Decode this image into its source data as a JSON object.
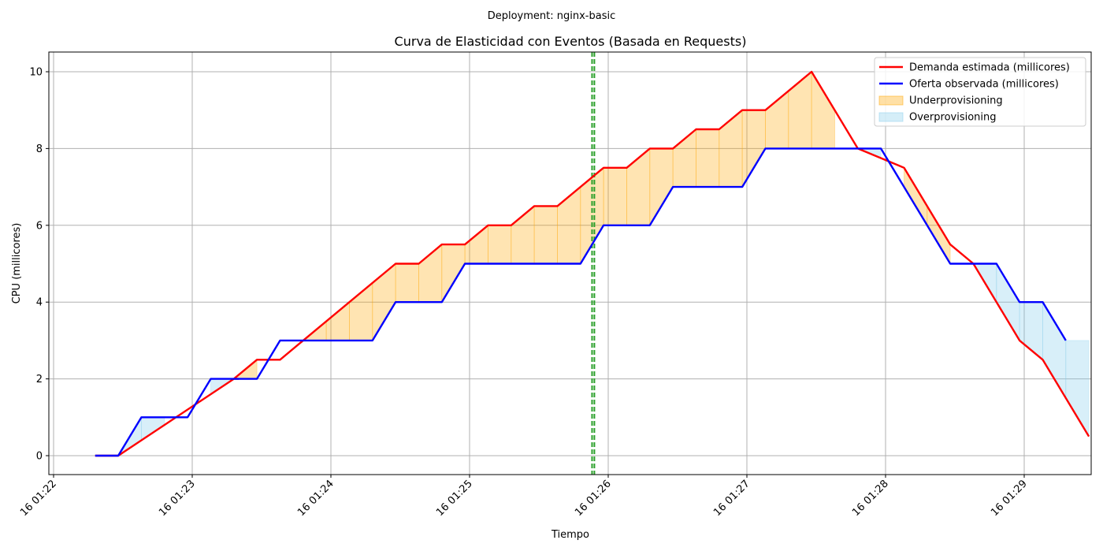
{
  "suptitle": "Deployment: nginx-basic",
  "chart_data": {
    "type": "line",
    "title": "Curva de Elasticidad con Eventos (Basada en Requests)",
    "xlabel": "Tiempo",
    "ylabel": "CPU (millicores)",
    "x_unit": "minutes",
    "x_ticks": [
      {
        "value": 82,
        "label": "16 01:22"
      },
      {
        "value": 83,
        "label": "16 01:23"
      },
      {
        "value": 84,
        "label": "16 01:24"
      },
      {
        "value": 85,
        "label": "16 01:25"
      },
      {
        "value": 86,
        "label": "16 01:26"
      },
      {
        "value": 87,
        "label": "16 01:27"
      },
      {
        "value": 88,
        "label": "16 01:28"
      },
      {
        "value": 89,
        "label": "16 01:29"
      }
    ],
    "y_ticks": [
      0,
      2,
      4,
      6,
      8,
      10
    ],
    "xlim": [
      "16 01:21:58",
      "16 01:29:30"
    ],
    "ylim": [
      -0.5,
      10.5
    ],
    "grid": true,
    "legend_position": "top-right",
    "series": [
      {
        "name": "Demanda estimada (millicores)",
        "color": "#ff0000",
        "points": [
          [
            "01:22:18",
            0
          ],
          [
            "01:22:28",
            0
          ],
          [
            "01:23:18",
            2
          ],
          [
            "01:23:18",
            2
          ],
          [
            "01:23:18",
            2
          ],
          [
            "01:23:18",
            2
          ],
          [
            "01:23:18",
            2
          ],
          [
            "01:23:19",
            2
          ],
          [
            "01:23:19",
            2
          ],
          [
            "01:23:19",
            2
          ],
          [
            "01:23:19",
            2
          ],
          [
            "01:23:20",
            2
          ],
          [
            "01:23:20",
            2
          ],
          [
            "01:23:20",
            2
          ],
          [
            "01:23:20",
            2
          ],
          [
            "01:23:20",
            2
          ],
          [
            "01:23:18",
            2
          ],
          [
            "01:23:18",
            2
          ],
          [
            "01:23:18",
            2
          ],
          [
            "01:23:18",
            2
          ],
          [
            "01:23:18",
            2
          ],
          [
            "01:23:18",
            2
          ],
          [
            "01:23:18",
            2
          ],
          [
            "01:23:18",
            2
          ],
          [
            "01:23:18",
            2
          ],
          [
            "01:23:18",
            2
          ],
          [
            "01:23:18",
            2
          ],
          [
            "01:23:18",
            2
          ],
          [
            "01:23:18",
            2
          ],
          [
            "01:23:18",
            2
          ],
          [
            "01:23:18",
            2
          ],
          [
            "01:23:18",
            2
          ],
          [
            "01:23:18",
            2
          ],
          [
            "01:23:18",
            2
          ],
          [
            "01:23:18",
            2
          ],
          [
            "01:23:18",
            2
          ],
          [
            "01:23:18",
            2
          ],
          [
            "01:23:18",
            2
          ],
          [
            "01:23:18",
            2
          ],
          [
            "01:23:18",
            2
          ],
          [
            "01:23:18",
            2
          ],
          [
            "01:23:18",
            2
          ],
          [
            "01:23:18",
            2
          ],
          [
            "01:23:18",
            2
          ],
          [
            "01:23:18",
            2
          ],
          [
            "01:23:18",
            2
          ],
          [
            "01:23:18",
            2
          ],
          [
            "01:23:18",
            2
          ],
          [
            "01:23:18",
            2
          ],
          [
            "01:23:18",
            2
          ],
          [
            "01:23:18",
            2
          ],
          [
            "01:23:18",
            2
          ],
          [
            "01:23:18",
            2
          ],
          [
            "01:23:18",
            2
          ],
          [
            "01:23:18",
            2
          ],
          [
            "01:23:18",
            2
          ],
          [
            "01:23:18",
            2
          ],
          [
            "01:23:18",
            2
          ],
          [
            "01:23:18",
            2
          ],
          [
            "01:23:18",
            2
          ],
          [
            "01:23:18",
            2
          ],
          [
            "01:23:18",
            2
          ],
          [
            "01:23:18",
            2
          ],
          [
            "01:23:18",
            2
          ],
          [
            "01:23:18",
            2
          ],
          [
            "01:23:18",
            2
          ],
          [
            "01:23:18",
            2
          ],
          [
            "01:23:18",
            2
          ],
          [
            "01:23:18",
            2
          ],
          [
            "01:23:18",
            2
          ],
          [
            "01:23:18",
            2
          ],
          [
            "01:23:18",
            2
          ],
          [
            "01:23:18",
            2
          ],
          [
            "01:23:18",
            2
          ],
          [
            "01:23:18",
            2
          ],
          [
            "01:23:18",
            2
          ],
          [
            "01:23:18",
            2
          ],
          [
            "01:23:18",
            2
          ],
          [
            "01:23:18",
            2
          ],
          [
            "01:23:18",
            2
          ],
          [
            "01:23:18",
            2
          ],
          [
            "01:23:18",
            2
          ],
          [
            "01:23:18",
            2
          ],
          [
            "01:23:18",
            2
          ],
          [
            "01:23:18",
            2
          ],
          [
            "01:23:18",
            2
          ],
          [
            "01:23:18",
            2
          ],
          [
            "01:23:18",
            2
          ],
          [
            "01:23:18",
            2
          ],
          [
            "01:23:18",
            2
          ],
          [
            "01:23:18",
            2
          ],
          [
            "01:23:18",
            2
          ],
          [
            "01:23:18",
            2
          ],
          [
            "01:23:18",
            2
          ],
          [
            "01:23:18",
            2
          ],
          [
            "01:23:18",
            2
          ],
          [
            "01:23:18",
            2
          ],
          [
            "01:23:18",
            2
          ],
          [
            "01:23:18",
            2
          ],
          [
            "01:23:18",
            2
          ],
          [
            "01:23:28",
            2.5
          ],
          [
            "01:23:38",
            2.5
          ],
          [
            "01:23:48",
            3
          ],
          [
            "01:24:28",
            5
          ],
          [
            "01:24:38",
            5
          ],
          [
            "01:24:48",
            5.5
          ],
          [
            "01:24:58",
            5.5
          ],
          [
            "01:25:08",
            6
          ],
          [
            "01:25:18",
            6
          ],
          [
            "01:25:28",
            6.5
          ],
          [
            "01:25:38",
            6.5
          ],
          [
            "01:25:58",
            7.5
          ],
          [
            "01:26:08",
            7.5
          ],
          [
            "01:26:18",
            8
          ],
          [
            "01:26:28",
            8
          ],
          [
            "01:26:38",
            8.5
          ],
          [
            "01:26:48",
            8.5
          ],
          [
            "01:26:58",
            9
          ],
          [
            "01:27:08",
            9
          ],
          [
            "01:27:28",
            10
          ],
          [
            "01:27:48",
            8
          ],
          [
            "01:28:08",
            7.5
          ],
          [
            "01:28:28",
            5.5
          ],
          [
            "01:28:38",
            5
          ],
          [
            "01:28:58",
            3
          ],
          [
            "01:29:08",
            2.5
          ],
          [
            "01:29:28",
            0.5
          ]
        ]
      },
      {
        "name": "Oferta observada (millicores)",
        "color": "#0000ff",
        "points": [
          [
            "01:22:18",
            0
          ],
          [
            "01:22:28",
            0
          ],
          [
            "01:22:38",
            1
          ],
          [
            "01:22:58",
            1
          ],
          [
            "01:23:08",
            2
          ],
          [
            "01:23:28",
            2
          ],
          [
            "01:23:38",
            3
          ],
          [
            "01:24:18",
            3
          ],
          [
            "01:24:28",
            4
          ],
          [
            "01:24:48",
            4
          ],
          [
            "01:24:58",
            5
          ],
          [
            "01:25:48",
            5
          ],
          [
            "01:25:58",
            6
          ],
          [
            "01:26:18",
            6
          ],
          [
            "01:26:28",
            7
          ],
          [
            "01:26:58",
            7
          ],
          [
            "01:27:08",
            8
          ],
          [
            "01:27:58",
            8
          ],
          [
            "01:28:18",
            6
          ],
          [
            "01:28:28",
            5
          ],
          [
            "01:28:48",
            5
          ],
          [
            "01:28:58",
            4
          ],
          [
            "01:29:08",
            4
          ],
          [
            "01:29:18",
            3
          ]
        ]
      }
    ],
    "events": [
      {
        "time": "01:25:53",
        "style": "vertical dashed line",
        "color": "#2ca02c"
      },
      {
        "time": "01:25:54",
        "style": "vertical dashed line",
        "color": "#2ca02c"
      }
    ],
    "fills": [
      {
        "name": "Underprovisioning",
        "color": "#ffa500",
        "rule": "demand above supply"
      },
      {
        "name": "Overprovisioning",
        "color": "#87ceeb",
        "rule": "supply above demand"
      }
    ],
    "legend": [
      {
        "label": "Demanda estimada (millicores)",
        "kind": "line",
        "color": "#ff0000"
      },
      {
        "label": "Oferta observada (millicores)",
        "kind": "line",
        "color": "#0000ff"
      },
      {
        "label": "Underprovisioning",
        "kind": "patch",
        "color": "#ffa500"
      },
      {
        "label": "Overprovisioning",
        "kind": "patch",
        "color": "#87ceeb"
      }
    ]
  }
}
